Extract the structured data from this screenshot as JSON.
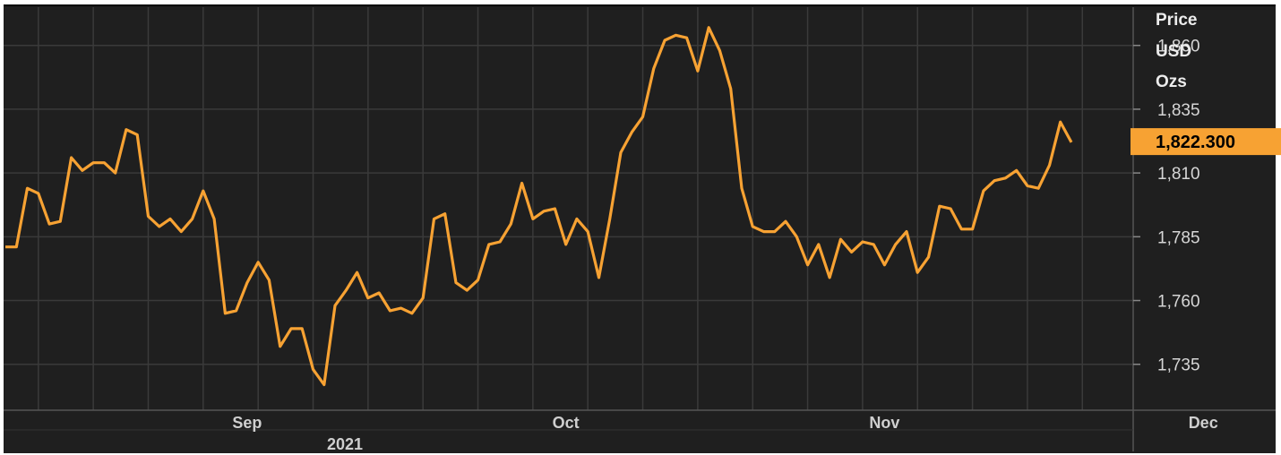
{
  "header": {
    "line1": "Price",
    "line2": "USD",
    "line3": "Ozs"
  },
  "last_value_label": "1,822.300",
  "colors": {
    "background": "#1f1f1f",
    "grid": "#3a3a3a",
    "line": "#f7a233",
    "text": "#d6d6d6"
  },
  "chart_data": {
    "type": "line",
    "title": "",
    "xlabel": "2021",
    "ylabel": "Price USD Ozs",
    "ylim": [
      1717,
      1875
    ],
    "y_ticks": [
      1735,
      1760,
      1785,
      1810,
      1835,
      1860
    ],
    "y_tick_labels": [
      "1,735",
      "1,760",
      "1,785",
      "1,810",
      "1,835",
      "1,860"
    ],
    "x_tick_labels": [
      {
        "label": "Sep",
        "index": 22
      },
      {
        "label": "Oct",
        "index": 51
      },
      {
        "label": "Nov",
        "index": 80
      },
      {
        "label": "Dec",
        "index": 109
      }
    ],
    "year_label": "2021",
    "series": [
      {
        "values": [
          1781,
          1781,
          1804,
          1802,
          1790,
          1791,
          1816,
          1811,
          1814,
          1814,
          1810,
          1827,
          1825,
          1793,
          1789,
          1792,
          1787,
          1792,
          1803,
          1792,
          1755,
          1756,
          1767,
          1775,
          1768,
          1742,
          1749,
          1749,
          1733,
          1727,
          1758,
          1764,
          1771,
          1761,
          1763,
          1756,
          1757,
          1755,
          1761,
          1792,
          1794,
          1767,
          1764,
          1768,
          1782,
          1783,
          1790,
          1806,
          1792,
          1795,
          1796,
          1782,
          1792,
          1787,
          1769,
          1792,
          1818,
          1826,
          1832,
          1851,
          1862,
          1864,
          1863,
          1850,
          1867,
          1858,
          1843,
          1804,
          1789,
          1787,
          1787,
          1791,
          1785,
          1774,
          1782,
          1769,
          1784,
          1779,
          1783,
          1782,
          1774,
          1782,
          1787,
          1771,
          1777,
          1797,
          1796,
          1788,
          1788,
          1803,
          1807,
          1808,
          1811,
          1805,
          1804,
          1813,
          1830,
          1822
        ]
      }
    ],
    "last_value": 1822.3,
    "grid": true,
    "legend": "none"
  }
}
